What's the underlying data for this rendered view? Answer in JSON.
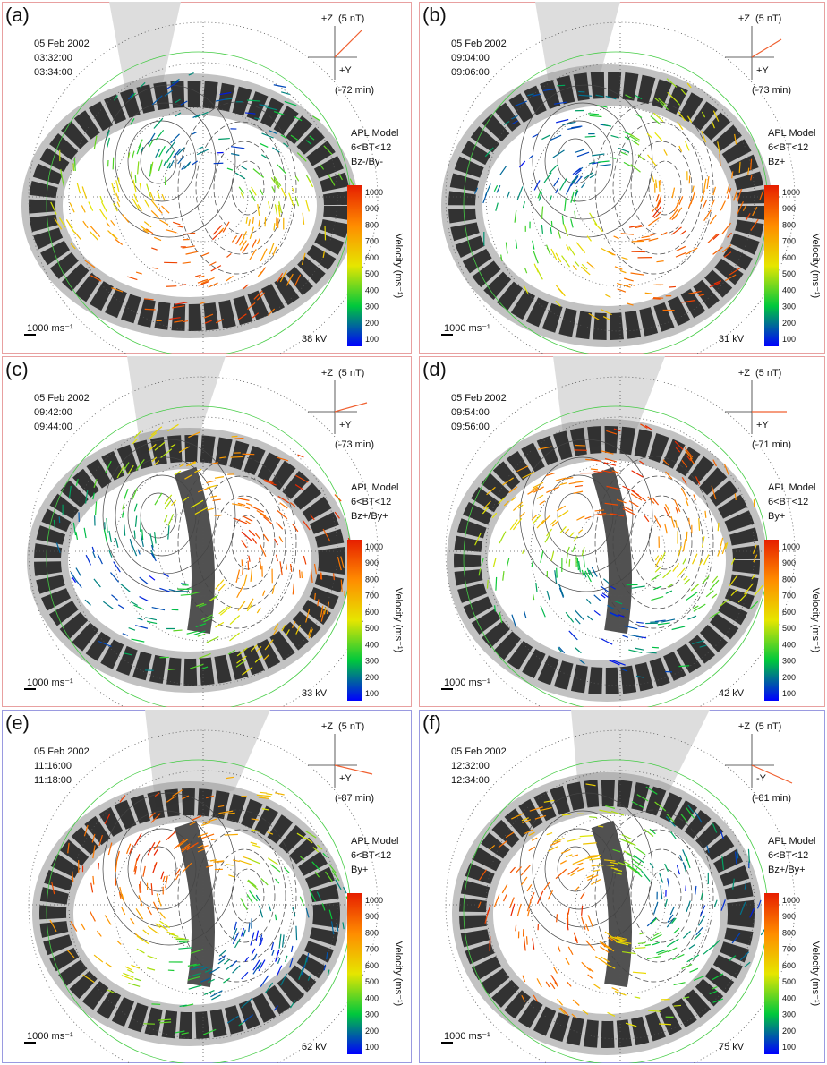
{
  "shared": {
    "date": "05 Feb 2002",
    "imf_z": "+Z",
    "imf_nt": "(5 nT)",
    "model": "APL Model",
    "bt_range": "6<BT<12",
    "scale_label": "1000 ms⁻¹",
    "colorbar_title": "Velocity (ms⁻¹)",
    "colorbar_ticks": [
      1000,
      900,
      800,
      700,
      600,
      500,
      400,
      300,
      200,
      100
    ]
  },
  "panels": [
    {
      "label": "(a)",
      "times": [
        "03:32:00",
        "03:34:00"
      ],
      "imf_y": "+Y",
      "lag": "(-72 min)",
      "condition": "Bz-/By-",
      "voltage": "38 kV"
    },
    {
      "label": "(b)",
      "times": [
        "09:04:00",
        "09:06:00"
      ],
      "imf_y": "+Y",
      "lag": "(-73 min)",
      "condition": "Bz+",
      "voltage": "31 kV"
    },
    {
      "label": "(c)",
      "times": [
        "09:42:00",
        "09:44:00"
      ],
      "imf_y": "+Y",
      "lag": "(-73 min)",
      "condition": "Bz+/By+",
      "voltage": "33 kV"
    },
    {
      "label": "(d)",
      "times": [
        "09:54:00",
        "09:56:00"
      ],
      "imf_y": "+Y",
      "lag": "(-71 min)",
      "condition": "By+",
      "voltage": "42 kV"
    },
    {
      "label": "(e)",
      "times": [
        "11:16:00",
        "11:18:00"
      ],
      "imf_y": "+Y",
      "lag": "(-87 min)",
      "condition": "By+",
      "voltage": "62 kV"
    },
    {
      "label": "(f)",
      "times": [
        "12:32:00",
        "12:34:00"
      ],
      "imf_y": "-Y",
      "lag": "(-81 min)",
      "condition": "Bz+/By+",
      "voltage": "75 kV"
    }
  ]
}
